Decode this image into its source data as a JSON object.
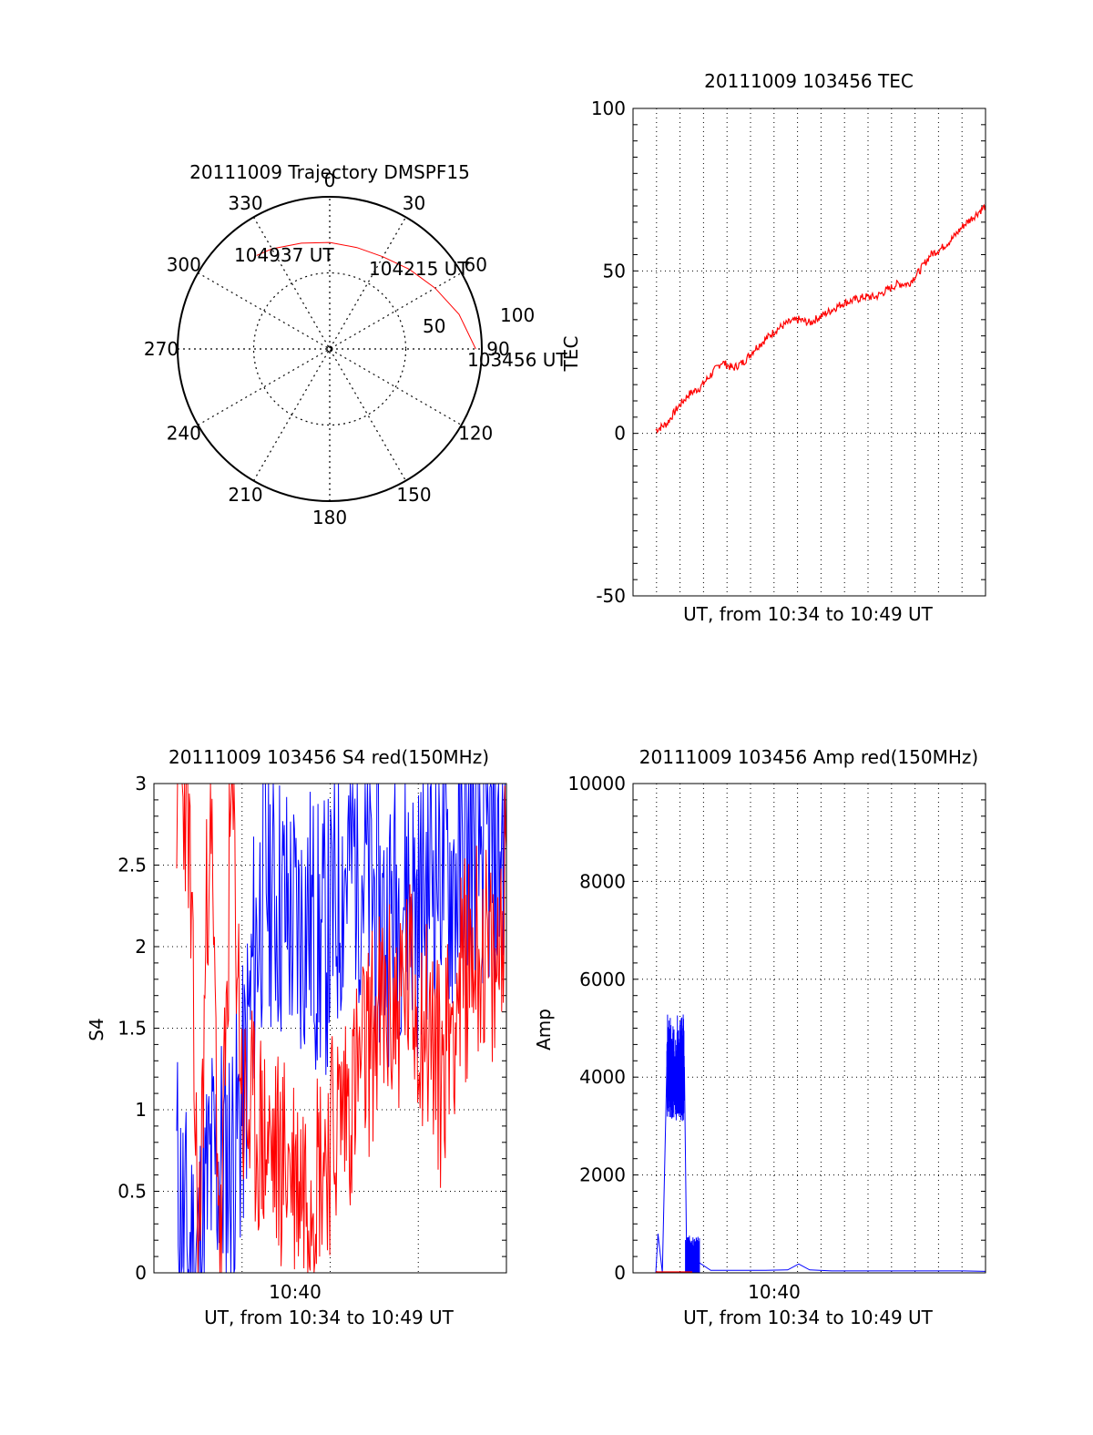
{
  "colors": {
    "red": "#ff0000",
    "blue": "#0000ff",
    "axis": "#000000",
    "grid": "#000000"
  },
  "chart_data": [
    {
      "type": "polar",
      "title": "20111009 Trajectory DMSPF15",
      "angle_labels": [
        "0",
        "30",
        "60",
        "90",
        "120",
        "150",
        "180",
        "210",
        "240",
        "270",
        "300",
        "330"
      ],
      "radial_ticks": [
        "50",
        "100"
      ],
      "grid": true,
      "trajectory": {
        "color": "red",
        "points": [
          [
            96,
            90
          ],
          [
            88,
            75
          ],
          [
            80,
            60
          ],
          [
            74,
            45
          ],
          [
            70,
            30
          ],
          [
            69,
            15
          ],
          [
            70,
            0
          ],
          [
            72,
            -15
          ],
          [
            76,
            -30
          ],
          [
            78,
            -38
          ]
        ]
      },
      "annotations": [
        "104937 UT",
        "104215 UT",
        "103456 UT"
      ]
    },
    {
      "type": "line",
      "title": "20111009 103456 TEC",
      "xlabel": "UT, from 10:34 to 10:49 UT",
      "ylabel": "TEC",
      "ylim": [
        -50,
        100
      ],
      "yticks": [
        "100",
        "50",
        "0",
        "-50"
      ],
      "grid": true,
      "series": [
        {
          "color": "red",
          "x": [
            0,
            0.5,
            1,
            1.5,
            2,
            2.5,
            3,
            3.5,
            4,
            4.5,
            5,
            5.5,
            6,
            6.5,
            7,
            7.5,
            8,
            8.5,
            9,
            9.5,
            10,
            10.5,
            11,
            11.5,
            12,
            12.5,
            13,
            13.5,
            14,
            14.5,
            15
          ],
          "y": [
            1,
            3,
            8,
            12,
            14,
            18,
            22,
            20,
            22,
            26,
            29,
            32,
            34,
            35,
            34,
            36,
            38,
            40,
            41,
            42,
            42,
            44,
            46,
            46,
            50,
            55,
            57,
            60,
            64,
            67,
            70
          ]
        }
      ]
    },
    {
      "type": "line",
      "title": "20111009 103456 S4 red(150MHz)",
      "xlabel": "UT, from 10:34 to 10:49 UT",
      "ylabel": "S4",
      "ylim": [
        0,
        3
      ],
      "yticks": [
        "3",
        "2.5",
        "2",
        "1.5",
        "1",
        "0.5",
        "0"
      ],
      "xticks": [
        "10:40"
      ],
      "grid": true,
      "series": [
        {
          "color": "blue",
          "x": [
            0,
            0.5,
            1,
            1.5,
            2,
            2.5,
            3,
            3.5,
            4,
            4.5,
            5,
            5.5,
            6,
            6.5,
            7,
            7.5,
            8,
            8.5,
            9,
            9.5,
            10,
            10.5,
            11,
            11.5,
            12,
            12.5,
            13,
            13.5,
            14,
            14.5,
            15
          ],
          "y": [
            0.6,
            0.1,
            0.1,
            0.6,
            0.7,
            0.7,
            1.0,
            1.9,
            2.5,
            2.3,
            2.2,
            2.1,
            2.2,
            2.0,
            2.1,
            2.4,
            2.6,
            2.5,
            2.3,
            2.1,
            2.3,
            2.4,
            2.2,
            2.5,
            2.6,
            2.4,
            2.5,
            2.7,
            2.6,
            2.5,
            2.8
          ]
        },
        {
          "color": "red",
          "x": [
            0,
            0.5,
            1,
            1.5,
            2,
            2.5,
            3,
            3.5,
            4,
            4.5,
            5,
            5.5,
            6,
            6.5,
            7,
            7.5,
            8,
            8.5,
            9,
            9.5,
            10,
            10.5,
            11,
            11.5,
            12,
            12.5,
            13,
            13.5,
            14,
            14.5,
            15
          ],
          "y": [
            3.0,
            3.0,
            0.0,
            3.0,
            0.0,
            3.0,
            1.0,
            0.9,
            0.8,
            0.7,
            0.7,
            0.6,
            0.6,
            0.7,
            0.8,
            1.0,
            1.1,
            1.3,
            1.5,
            1.6,
            1.6,
            1.8,
            1.6,
            1.5,
            1.2,
            1.6,
            1.8,
            2.0,
            2.0,
            1.7,
            2.6
          ]
        }
      ]
    },
    {
      "type": "line",
      "title": "20111009 103456 Amp red(150MHz)",
      "xlabel": "UT, from 10:34 to 10:49 UT",
      "ylabel": "Amp",
      "ylim": [
        0,
        10000
      ],
      "yticks": [
        "10000",
        "8000",
        "6000",
        "4000",
        "2000",
        "0"
      ],
      "xticks": [
        "10:40"
      ],
      "grid": true,
      "series": [
        {
          "color": "blue",
          "x": [
            0,
            0.1,
            0.3,
            0.5,
            0.6,
            1.0,
            1.3,
            1.4,
            1.5,
            1.6,
            2.0,
            2.5,
            3,
            4,
            5,
            6,
            6.5,
            7,
            8,
            9,
            10,
            11,
            12,
            13,
            14,
            15
          ],
          "y": [
            0,
            800,
            0,
            4200,
            4300,
            4200,
            4200,
            400,
            700,
            600,
            200,
            50,
            50,
            50,
            50,
            60,
            180,
            60,
            40,
            40,
            40,
            40,
            40,
            40,
            40,
            30
          ]
        }
      ]
    }
  ]
}
